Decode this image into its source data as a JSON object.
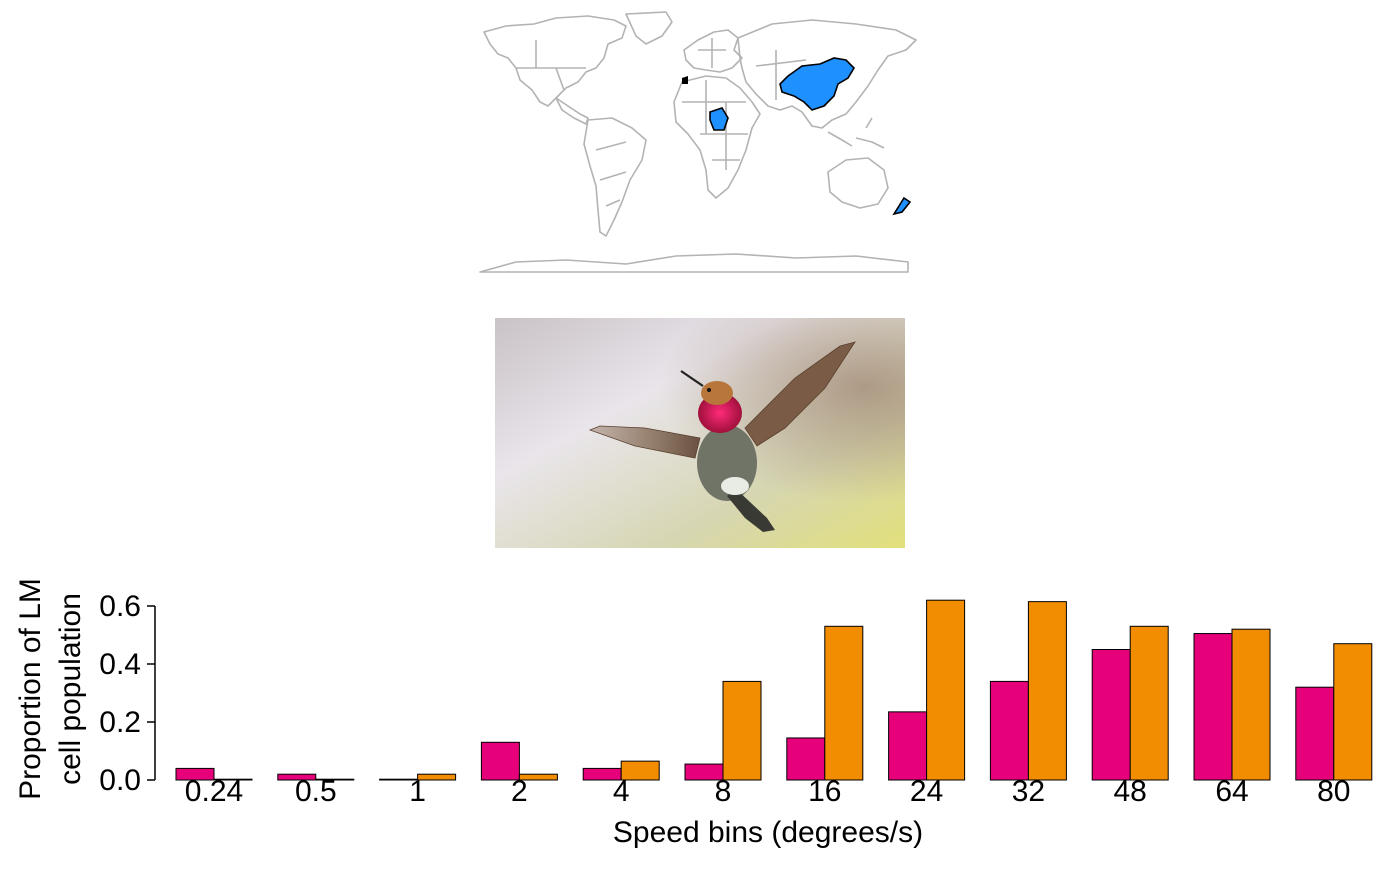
{
  "map": {
    "highlighted_countries": [
      "China",
      "Nigeria",
      "New Zealand"
    ],
    "highlight_color": "#1e90ff",
    "outline_color": "#b3b3b3"
  },
  "photo": {
    "subject": "hummingbird",
    "throat_color": "#d0104f",
    "background_colors": [
      "#e6e4e8",
      "#d8dca0",
      "#b89a8a"
    ]
  },
  "chart_data": {
    "type": "bar",
    "categories": [
      "0.24",
      "0.5",
      "1",
      "2",
      "4",
      "8",
      "16",
      "24",
      "32",
      "48",
      "64",
      "80"
    ],
    "series": [
      {
        "color": "#e6007a",
        "values": [
          0.04,
          0.02,
          0.0,
          0.13,
          0.04,
          0.055,
          0.145,
          0.235,
          0.34,
          0.45,
          0.505,
          0.32
        ]
      },
      {
        "color": "#f28c00",
        "values": [
          0.0,
          0.0,
          0.02,
          0.02,
          0.065,
          0.34,
          0.53,
          0.62,
          0.615,
          0.53,
          0.52,
          0.47
        ]
      }
    ],
    "xlabel": "Speed bins (degrees/s)",
    "ylabel_lines": [
      "Proportion of LM",
      "cell population"
    ],
    "ylim": [
      0,
      0.6
    ],
    "yticks": [
      "0.0",
      "0.2",
      "0.4",
      "0.6"
    ],
    "grid": false,
    "legend": "none"
  }
}
